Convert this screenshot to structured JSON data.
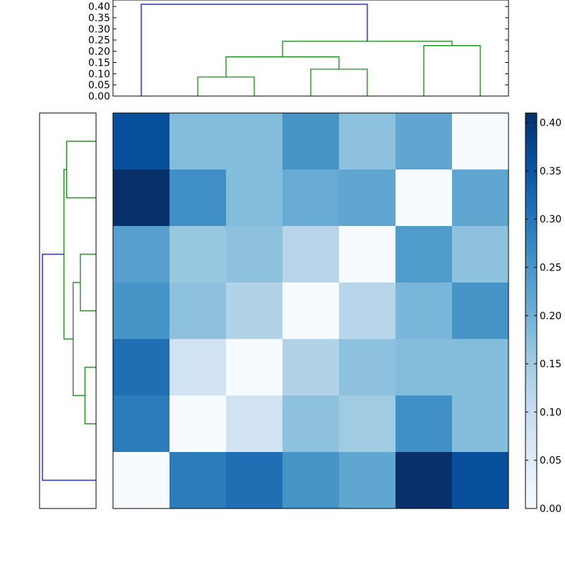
{
  "chart_data": [
    {
      "type": "heatmap",
      "title": "",
      "xlabel": "",
      "ylabel": "",
      "colormap": "Blues",
      "value_range": [
        0,
        0.41
      ],
      "n_rows": 7,
      "n_cols": 7,
      "values": [
        [
          0.36,
          0.18,
          0.18,
          0.25,
          0.17,
          0.22,
          0.0
        ],
        [
          0.41,
          0.26,
          0.18,
          0.21,
          0.22,
          0.0,
          0.22
        ],
        [
          0.23,
          0.16,
          0.17,
          0.12,
          0.0,
          0.24,
          0.17
        ],
        [
          0.25,
          0.17,
          0.13,
          0.0,
          0.12,
          0.19,
          0.25
        ],
        [
          0.31,
          0.08,
          0.0,
          0.13,
          0.17,
          0.18,
          0.18
        ],
        [
          0.29,
          0.0,
          0.08,
          0.17,
          0.15,
          0.26,
          0.18
        ],
        [
          0.0,
          0.29,
          0.31,
          0.25,
          0.22,
          0.41,
          0.36
        ]
      ]
    },
    {
      "type": "dendrogram",
      "orientation": "top",
      "ylim": [
        0,
        0.41
      ],
      "y_ticks": [
        "0.00",
        "0.05",
        "0.10",
        "0.15",
        "0.20",
        "0.25",
        "0.30",
        "0.35",
        "0.40"
      ],
      "links": [
        {
          "x": [
            1.5,
            1.5,
            2.5,
            2.5
          ],
          "y": [
            0.0,
            0.085,
            0.085,
            0.0
          ],
          "color": "#008000"
        },
        {
          "x": [
            3.5,
            3.5,
            4.5,
            4.5
          ],
          "y": [
            0.0,
            0.12,
            0.12,
            0.0
          ],
          "color": "#008000"
        },
        {
          "x": [
            2.0,
            2.0,
            4.0,
            4.0
          ],
          "y": [
            0.085,
            0.175,
            0.175,
            0.12
          ],
          "color": "#008000"
        },
        {
          "x": [
            5.5,
            5.5,
            6.5,
            6.5
          ],
          "y": [
            0.0,
            0.225,
            0.225,
            0.0
          ],
          "color": "#008000"
        },
        {
          "x": [
            3.0,
            3.0,
            6.0,
            6.0
          ],
          "y": [
            0.175,
            0.245,
            0.245,
            0.225
          ],
          "color": "#008000"
        },
        {
          "x": [
            0.5,
            0.5,
            4.5,
            4.5
          ],
          "y": [
            0.0,
            0.41,
            0.41,
            0.245
          ],
          "color": "#0000ff"
        }
      ]
    },
    {
      "type": "dendrogram",
      "orientation": "left",
      "xlim": [
        0,
        0.41
      ],
      "links": [
        {
          "y": [
            0.5,
            0.5,
            1.5,
            1.5
          ],
          "x": [
            0.0,
            0.225,
            0.225,
            0.0
          ],
          "color": "#008000"
        },
        {
          "y": [
            2.5,
            2.5,
            3.5,
            3.5
          ],
          "x": [
            0.0,
            0.12,
            0.12,
            0.0
          ],
          "color": "#008000"
        },
        {
          "y": [
            4.5,
            4.5,
            5.5,
            5.5
          ],
          "x": [
            0.0,
            0.085,
            0.085,
            0.0
          ],
          "color": "#008000"
        },
        {
          "y": [
            3.0,
            3.0,
            5.0,
            5.0
          ],
          "x": [
            0.12,
            0.175,
            0.175,
            0.085
          ],
          "color": "#008000"
        },
        {
          "y": [
            1.0,
            1.0,
            4.0,
            4.0
          ],
          "x": [
            0.225,
            0.245,
            0.245,
            0.175
          ],
          "color": "#008000"
        },
        {
          "y": [
            2.5,
            2.5,
            6.5,
            6.5
          ],
          "x": [
            0.245,
            0.41,
            0.41,
            0.0
          ],
          "color": "#0000ff"
        }
      ]
    },
    {
      "type": "colorbar",
      "colormap": "Blues",
      "range": [
        0,
        0.41
      ],
      "ticks": [
        "0.00",
        "0.05",
        "0.10",
        "0.15",
        "0.20",
        "0.25",
        "0.30",
        "0.35",
        "0.40"
      ]
    }
  ]
}
